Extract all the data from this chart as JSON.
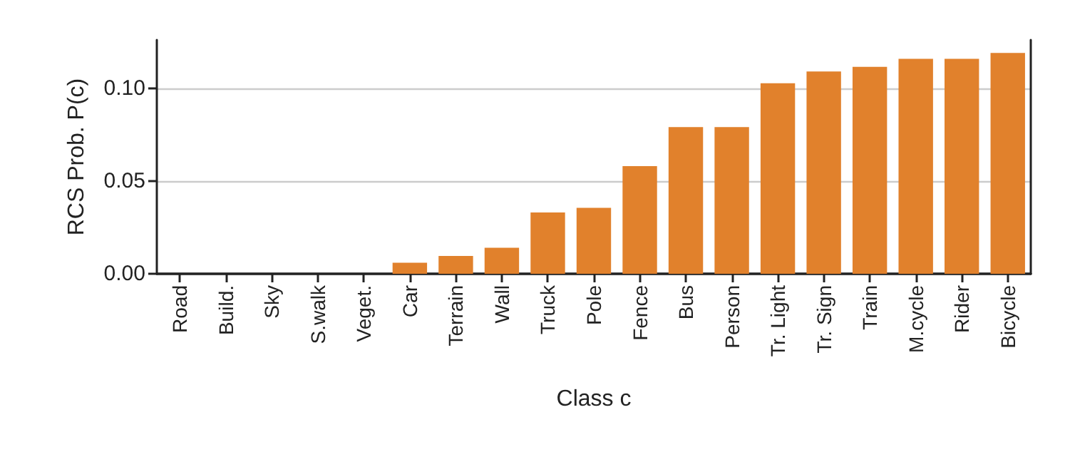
{
  "chart_data": {
    "type": "bar",
    "xlabel": "Class c",
    "ylabel": "RCS Prob. P(c)",
    "categories": [
      "Road",
      "Build.",
      "Sky",
      "S.walk",
      "Veget.",
      "Car",
      "Terrain",
      "Wall",
      "Truck",
      "Pole",
      "Fence",
      "Bus",
      "Person",
      "Tr. Light",
      "Tr. Sign",
      "Train",
      "M.cycle",
      "Rider",
      "Bicycle"
    ],
    "values": [
      0,
      0,
      0,
      0,
      0,
      0.006,
      0.0096,
      0.014,
      0.033,
      0.0355,
      0.058,
      0.079,
      0.079,
      0.1027,
      0.109,
      0.1115,
      0.1158,
      0.1158,
      0.119
    ],
    "color": "#e1812c",
    "ylim": [
      0,
      0.126
    ],
    "yticks": [
      {
        "value": 0,
        "label": "0.00"
      },
      {
        "value": 0.05,
        "label": "0.05"
      },
      {
        "value": 0.1,
        "label": "0.10"
      }
    ],
    "grid": "y"
  }
}
